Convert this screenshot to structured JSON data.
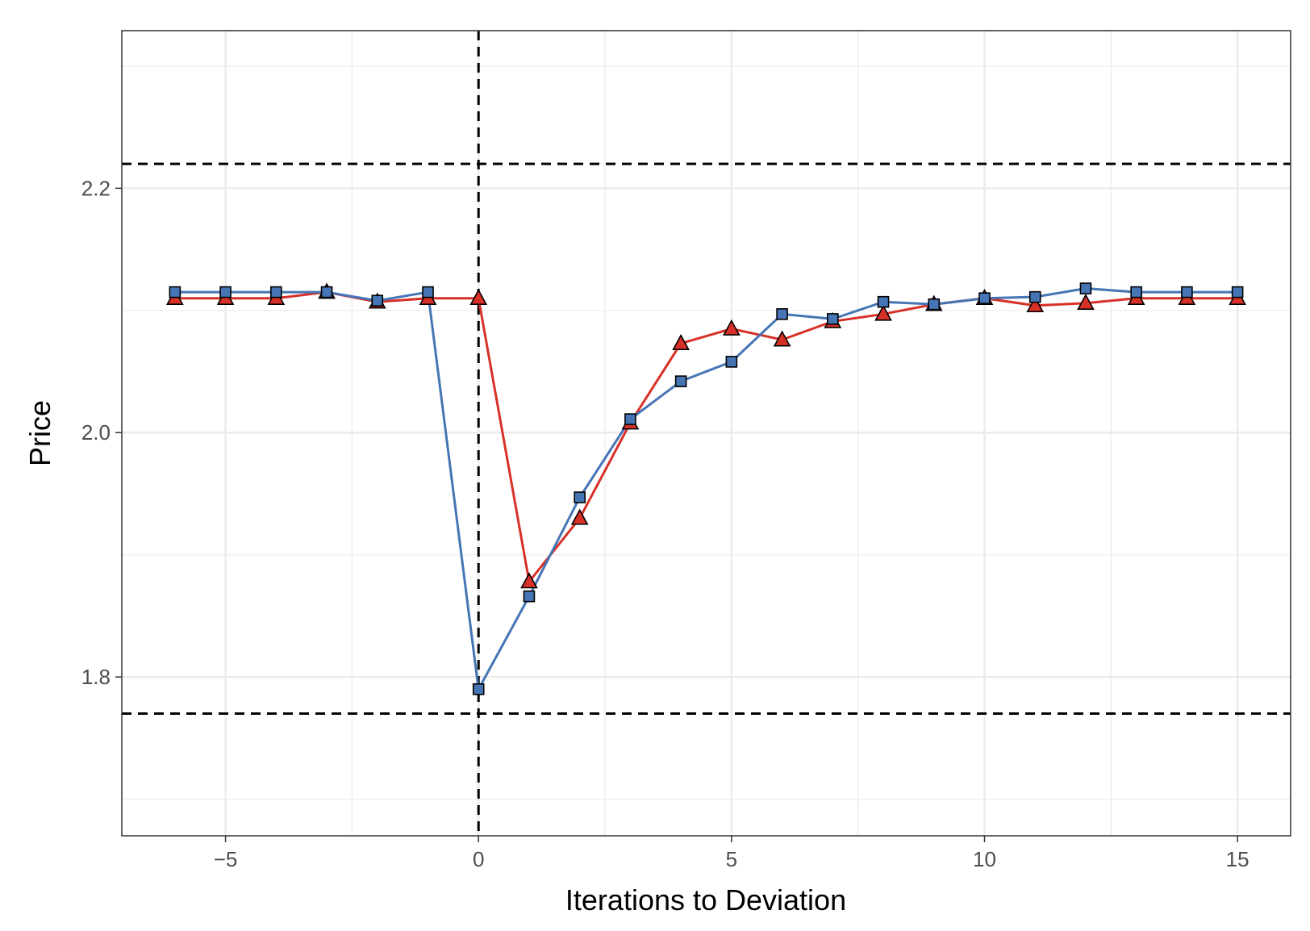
{
  "chart_data": {
    "type": "line",
    "title": "",
    "xlabel": "Iterations to Deviation",
    "ylabel": "Price",
    "xlim": [
      -7.05,
      16.05
    ],
    "ylim": [
      1.67,
      2.329
    ],
    "x_ticks": [
      -5,
      0,
      5,
      10,
      15
    ],
    "x_tick_labels": [
      "−5",
      "0",
      "5",
      "10",
      "15"
    ],
    "y_ticks": [
      1.8,
      2.0,
      2.2
    ],
    "y_tick_labels": [
      "1.8",
      "2.0",
      "2.2"
    ],
    "grid": true,
    "legend": "none",
    "reference_lines": {
      "vertical": [
        0
      ],
      "horizontal": [
        2.22,
        1.77
      ]
    },
    "series": [
      {
        "marker": "triangle",
        "color": "#d73027",
        "x": [
          -6,
          -5,
          -4,
          -3,
          -2,
          -1,
          0,
          1,
          2,
          3,
          4,
          5,
          6,
          7,
          8,
          9,
          10,
          11,
          12,
          13,
          14,
          15
        ],
        "y": [
          2.11,
          2.11,
          2.11,
          2.115,
          2.107,
          2.11,
          2.11,
          1.878,
          1.93,
          2.008,
          2.073,
          2.085,
          2.076,
          2.091,
          2.097,
          2.105,
          2.11,
          2.104,
          2.106,
          2.11,
          2.11,
          2.11
        ]
      },
      {
        "marker": "square",
        "color": "#4575b4",
        "x": [
          -6,
          -5,
          -4,
          -3,
          -2,
          -1,
          0,
          1,
          2,
          3,
          4,
          5,
          6,
          7,
          8,
          9,
          10,
          11,
          12,
          13,
          14,
          15
        ],
        "y": [
          2.115,
          2.115,
          2.115,
          2.115,
          2.108,
          2.115,
          1.79,
          1.866,
          1.947,
          2.011,
          2.042,
          2.058,
          2.097,
          2.093,
          2.107,
          2.105,
          2.11,
          2.111,
          2.118,
          2.115,
          2.115,
          2.115
        ]
      }
    ]
  }
}
